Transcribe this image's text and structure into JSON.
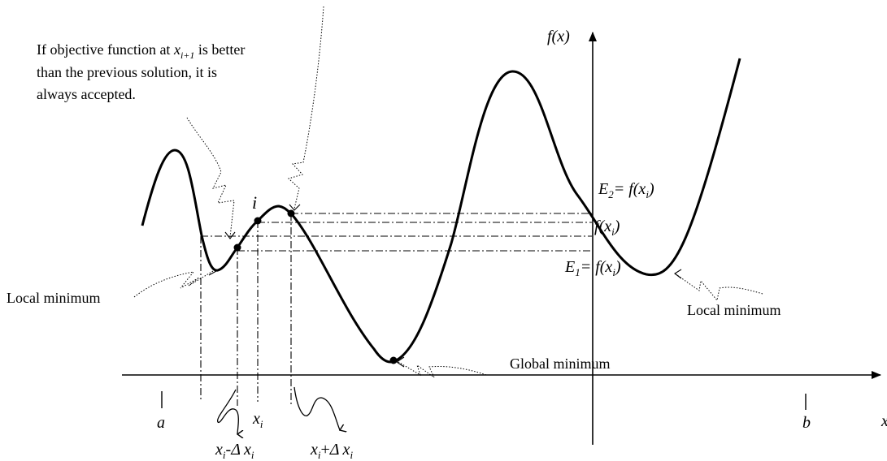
{
  "annotation": {
    "line1_pre": "If objective function at ",
    "line1_var": "x",
    "line1_sub": "i+1",
    "line1_post": " is better",
    "line2": "than the previous solution, it is",
    "line3": "always accepted."
  },
  "labels": {
    "local_min_left": "Local minimum",
    "local_min_right": "Local minimum",
    "global_min": "Global minimum",
    "point_i": "i",
    "y_axis": "f(x)",
    "x_axis": "x",
    "a": "a",
    "b": "b",
    "fxi_var": "f(x",
    "fxi_sub": "i",
    "fxi_close": ")",
    "e2_E": "E",
    "e2_sub": "2",
    "e2_rest": "= f(x",
    "e2_xsub": "i",
    "e2_close": ")",
    "e1_E": "E",
    "e1_sub": "1",
    "e1_rest": "= f(x",
    "e1_xsub": "i",
    "e1_close": ")",
    "xi_x": "x",
    "xi_sub": "i",
    "xminus_x": "x",
    "xminus_sub": "i",
    "xminus_op": "-",
    "xminus_delta": "Δ",
    "xminus_x2": "x",
    "xminus_sub2": "i",
    "xplus_x": "x",
    "xplus_sub": "i",
    "xplus_op": "+",
    "xplus_delta": "Δ",
    "xplus_x2": "x",
    "xplus_sub2": "i"
  }
}
